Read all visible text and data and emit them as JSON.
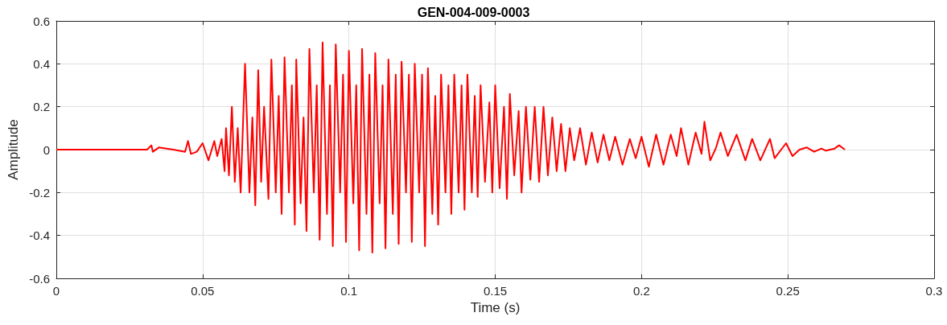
{
  "chart_data": {
    "type": "line",
    "title": "GEN-004-009-0003",
    "xlabel": "Time (s)",
    "ylabel": "Amplitude",
    "xlim": [
      0,
      0.3
    ],
    "xticks": [
      0,
      0.05,
      0.1,
      0.15,
      0.2,
      0.25,
      0.3
    ],
    "ylim": [
      -0.6,
      0.6
    ],
    "yticks": [
      -0.6,
      -0.4,
      -0.2,
      0,
      0.2,
      0.4,
      0.6
    ],
    "grid": true,
    "marker": "none",
    "line_style": "solid",
    "series": [
      {
        "color": "#ff0000",
        "x": [
          0,
          0.01,
          0.02,
          0.031,
          0.0325,
          0.033,
          0.035,
          0.04,
          0.044,
          0.045,
          0.046,
          0.048,
          0.05,
          0.052,
          0.054,
          0.055,
          0.0565,
          0.0575,
          0.058,
          0.059,
          0.06,
          0.061,
          0.062,
          0.063,
          0.0645,
          0.066,
          0.067,
          0.068,
          0.069,
          0.07,
          0.071,
          0.0725,
          0.0735,
          0.075,
          0.076,
          0.077,
          0.078,
          0.0795,
          0.0805,
          0.0815,
          0.082,
          0.0835,
          0.0845,
          0.0855,
          0.0865,
          0.088,
          0.089,
          0.09,
          0.091,
          0.0925,
          0.0935,
          0.0945,
          0.0955,
          0.097,
          0.098,
          0.099,
          0.1,
          0.1015,
          0.1025,
          0.1035,
          0.1045,
          0.106,
          0.107,
          0.108,
          0.109,
          0.1105,
          0.1115,
          0.1125,
          0.1135,
          0.115,
          0.116,
          0.117,
          0.118,
          0.1195,
          0.1205,
          0.1215,
          0.1225,
          0.124,
          0.125,
          0.126,
          0.127,
          0.1285,
          0.1295,
          0.1305,
          0.1315,
          0.133,
          0.134,
          0.135,
          0.136,
          0.1375,
          0.1385,
          0.1395,
          0.1405,
          0.142,
          0.143,
          0.144,
          0.145,
          0.1465,
          0.148,
          0.149,
          0.15,
          0.1515,
          0.153,
          0.154,
          0.155,
          0.1565,
          0.158,
          0.159,
          0.1605,
          0.162,
          0.1635,
          0.165,
          0.1665,
          0.168,
          0.1695,
          0.171,
          0.1725,
          0.174,
          0.1755,
          0.177,
          0.179,
          0.181,
          0.183,
          0.185,
          0.187,
          0.189,
          0.191,
          0.1935,
          0.196,
          0.198,
          0.2,
          0.2025,
          0.205,
          0.2075,
          0.21,
          0.212,
          0.2135,
          0.216,
          0.2185,
          0.2205,
          0.2215,
          0.2235,
          0.2255,
          0.227,
          0.2295,
          0.2325,
          0.2355,
          0.2378,
          0.2406,
          0.2439,
          0.2455,
          0.2494,
          0.2516,
          0.254,
          0.2565,
          0.259,
          0.2615,
          0.263,
          0.266,
          0.2675,
          0.2695
        ],
        "values": [
          0,
          0,
          0,
          0,
          0.02,
          -0.01,
          0.01,
          0,
          -0.01,
          0.04,
          -0.02,
          -0.01,
          0.03,
          -0.05,
          0.04,
          -0.03,
          0.05,
          -0.1,
          0.1,
          -0.12,
          0.2,
          -0.15,
          0.1,
          -0.2,
          0.4,
          -0.2,
          0.15,
          -0.26,
          0.37,
          -0.15,
          0.2,
          -0.23,
          0.42,
          -0.2,
          0.25,
          -0.3,
          0.43,
          -0.2,
          0.3,
          -0.35,
          0.42,
          -0.25,
          0.15,
          -0.38,
          0.47,
          -0.2,
          0.3,
          -0.42,
          0.5,
          -0.3,
          0.3,
          -0.45,
          0.49,
          -0.2,
          0.35,
          -0.43,
          0.46,
          -0.25,
          0.3,
          -0.47,
          0.47,
          -0.3,
          0.35,
          -0.48,
          0.45,
          -0.25,
          0.3,
          -0.46,
          0.42,
          -0.3,
          0.35,
          -0.44,
          0.41,
          -0.2,
          0.35,
          -0.43,
          0.4,
          -0.2,
          0.35,
          -0.45,
          0.38,
          -0.3,
          0.25,
          -0.35,
          0.35,
          -0.2,
          0.3,
          -0.3,
          0.35,
          -0.2,
          0.3,
          -0.28,
          0.35,
          -0.2,
          0.25,
          -0.22,
          0.3,
          -0.15,
          0.22,
          -0.2,
          0.3,
          -0.18,
          0.2,
          -0.23,
          0.26,
          -0.12,
          0.18,
          -0.2,
          0.2,
          -0.14,
          0.2,
          -0.15,
          0.2,
          -0.12,
          0.15,
          -0.1,
          0.12,
          -0.1,
          0.1,
          -0.05,
          0.1,
          -0.07,
          0.08,
          -0.06,
          0.07,
          -0.05,
          0.06,
          -0.07,
          0.05,
          -0.04,
          0.06,
          -0.08,
          0.07,
          -0.07,
          0.07,
          -0.03,
          0.1,
          -0.07,
          0.08,
          -0.02,
          0.13,
          -0.05,
          0.01,
          0.08,
          -0.03,
          0.07,
          -0.05,
          0.05,
          -0.05,
          0.05,
          -0.04,
          0.03,
          -0.03,
          0,
          0.01,
          -0.01,
          0.005,
          -0.005,
          0.005,
          0.02,
          0
        ]
      }
    ]
  }
}
